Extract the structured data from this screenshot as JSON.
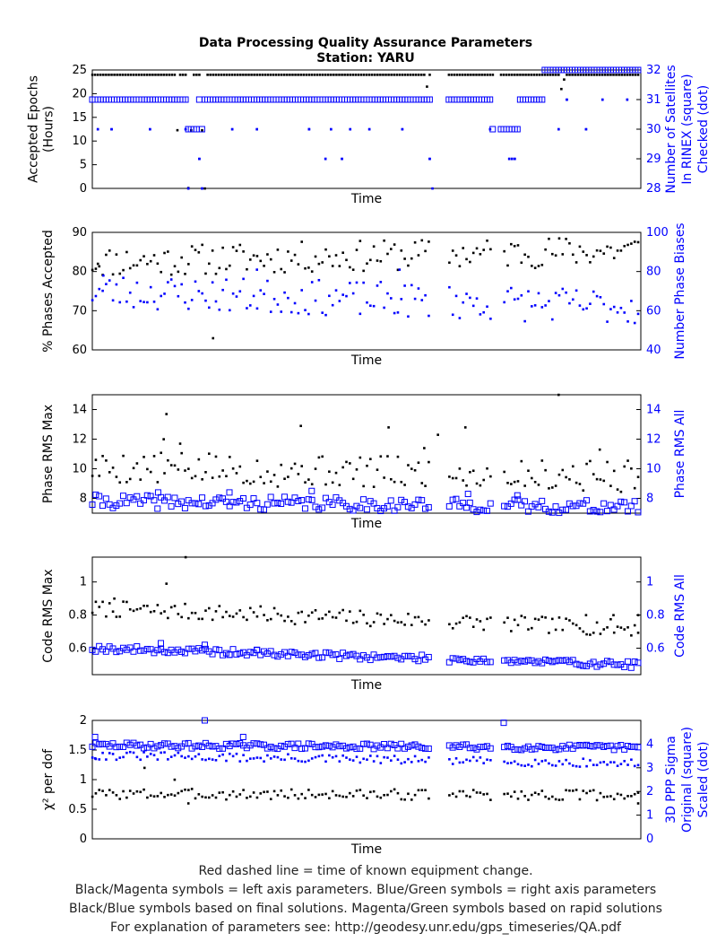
{
  "title": "Data Processing Quality Assurance Parameters",
  "subtitle": "Station: YARU",
  "footer": [
    "Red dashed line = time of known equipment change.",
    "Black/Magenta symbols = left axis parameters. Blue/Green symbols = right axis parameters",
    "Black/Blue symbols based on final solutions.  Magenta/Green symbols based on rapid solutions",
    "For explanation of parameters see: http://geodesy.unr.edu/gps_timeseries/QA.pdf"
  ],
  "colors": {
    "left": "#000000",
    "right": "#0000ff"
  },
  "chart_data": [
    {
      "type": "scatter",
      "xlabel": "Time",
      "ylabel_left": [
        "Accepted Epochs",
        "(Hours)"
      ],
      "ylabel_right": [
        "Number of Satellites",
        "In RINEX (square)",
        "Checked (dot)"
      ],
      "left_ylim": [
        0,
        25
      ],
      "left_ticks": [
        "0",
        "5",
        "10",
        "15",
        "20",
        "25"
      ],
      "right_ylim": [
        28,
        32
      ],
      "right_ticks": [
        "28",
        "29",
        "30",
        "31",
        "32"
      ],
      "grid": false,
      "x_range": [
        0,
        200
      ],
      "gaps": [
        [
          123,
          130
        ],
        [
          146,
          149
        ]
      ],
      "series": [
        {
          "axis": "left",
          "marker": "dot",
          "color": "#000000",
          "base": 24,
          "spread": 0.05,
          "values": [
            [
              31,
              12.3
            ],
            [
              35,
              0.1
            ],
            [
              36,
              12.3
            ],
            [
              40,
              12.3
            ],
            [
              41,
              0
            ],
            [
              100,
              24
            ],
            [
              122,
              21.5
            ],
            [
              124,
              0
            ],
            [
              126,
              23
            ],
            [
              147,
              12.3
            ],
            [
              161,
              24
            ],
            [
              167,
              24
            ],
            [
              171,
              21
            ],
            [
              172,
              23
            ],
            [
              175,
              24
            ]
          ],
          "mode": "base_plus_points"
        },
        {
          "axis": "right",
          "marker": "square",
          "color": "#0000ff",
          "base": 31,
          "spread": 0.0,
          "values": [
            [
              35,
              30
            ],
            [
              36,
              30
            ],
            [
              37,
              30
            ],
            [
              38,
              30
            ],
            [
              40,
              30
            ],
            [
              124,
              30
            ],
            [
              146,
              30
            ],
            [
              147,
              30
            ],
            [
              148,
              30
            ],
            [
              149,
              30
            ],
            [
              150,
              30
            ],
            [
              151,
              30
            ],
            [
              152,
              30
            ],
            [
              153,
              30
            ],
            [
              154,
              30
            ],
            [
              155,
              30
            ],
            [
              165,
              32
            ],
            [
              166,
              32
            ],
            [
              167,
              32
            ],
            [
              168,
              32
            ],
            [
              169,
              32
            ],
            [
              170,
              32
            ],
            [
              171,
              32
            ],
            [
              172,
              32
            ],
            [
              173,
              32
            ],
            [
              174,
              32
            ],
            [
              175,
              32
            ],
            [
              176,
              32
            ],
            [
              177,
              32
            ],
            [
              178,
              32
            ],
            [
              179,
              32
            ],
            [
              180,
              32
            ],
            [
              181,
              32
            ],
            [
              182,
              32
            ],
            [
              183,
              32
            ],
            [
              184,
              32
            ],
            [
              185,
              32
            ],
            [
              186,
              32
            ],
            [
              187,
              32
            ],
            [
              188,
              32
            ],
            [
              189,
              32
            ],
            [
              190,
              32
            ],
            [
              191,
              32
            ],
            [
              192,
              32
            ],
            [
              193,
              32
            ],
            [
              194,
              32
            ],
            [
              195,
              32
            ],
            [
              196,
              32
            ],
            [
              197,
              32
            ],
            [
              198,
              32
            ],
            [
              199,
              32
            ]
          ],
          "mode": "base_plus_points"
        },
        {
          "axis": "right",
          "marker": "dot",
          "color": "#0000ff",
          "base": 31,
          "spread": 0.0,
          "values": [
            [
              2,
              30
            ],
            [
              7,
              30
            ],
            [
              21,
              30
            ],
            [
              34,
              30
            ],
            [
              35,
              28
            ],
            [
              39,
              29
            ],
            [
              40,
              28
            ],
            [
              51,
              30
            ],
            [
              60,
              30
            ],
            [
              79,
              30
            ],
            [
              79,
              30
            ],
            [
              85,
              29
            ],
            [
              87,
              30
            ],
            [
              91,
              29
            ],
            [
              94,
              30
            ],
            [
              101,
              30
            ],
            [
              113,
              30
            ],
            [
              123,
              29
            ],
            [
              124,
              28
            ],
            [
              145,
              30
            ],
            [
              152,
              29
            ],
            [
              153,
              29
            ],
            [
              154,
              29
            ],
            [
              170,
              30
            ],
            [
              173,
              31
            ],
            [
              180,
              30
            ],
            [
              186,
              31
            ],
            [
              195,
              31
            ]
          ],
          "mode": "base_plus_points"
        }
      ]
    },
    {
      "type": "scatter",
      "xlabel": "Time",
      "ylabel_left": [
        "% Phases Accepted"
      ],
      "ylabel_right": [
        "Number Phase Biases"
      ],
      "left_ylim": [
        60,
        90
      ],
      "left_ticks": [
        "60",
        "70",
        "80",
        "90"
      ],
      "right_ylim": [
        40,
        100
      ],
      "right_ticks": [
        "40",
        "60",
        "80",
        "100"
      ],
      "grid": false,
      "x_range": [
        0,
        200
      ],
      "gaps": [
        [
          123,
          130
        ],
        [
          146,
          149
        ]
      ],
      "series": [
        {
          "axis": "left",
          "marker": "dot",
          "color": "#000000",
          "mode": "generated",
          "seed": 11,
          "mean": 84,
          "amp": 4,
          "trend": 3,
          "n": 160,
          "extra": [
            [
              44,
              63
            ],
            [
              2,
              82
            ]
          ]
        },
        {
          "axis": "right",
          "marker": "dot",
          "color": "#0000ff",
          "mode": "generated",
          "seed": 23,
          "mean": 66,
          "amp": 9,
          "trend": -8,
          "n": 160,
          "extra": [
            [
              4,
              78
            ],
            [
              60,
              81
            ],
            [
              112,
              81
            ]
          ]
        }
      ]
    },
    {
      "type": "scatter",
      "xlabel": "Time",
      "ylabel_left": [
        "Phase RMS Max"
      ],
      "ylabel_right": [
        "Phase RMS All"
      ],
      "left_ylim": [
        7,
        15
      ],
      "left_ticks": [
        "8",
        "10",
        "12",
        "14"
      ],
      "right_ylim": [
        7,
        15
      ],
      "right_ticks": [
        "8",
        "10",
        "12",
        "14"
      ],
      "grid": false,
      "x_range": [
        0,
        200
      ],
      "gaps": [
        [
          123,
          130
        ],
        [
          146,
          149
        ]
      ],
      "series": [
        {
          "axis": "left",
          "marker": "dot",
          "color": "#000000",
          "mode": "generated",
          "seed": 5,
          "mean": 9.8,
          "amp": 1.1,
          "trend": -0.6,
          "n": 160,
          "extra": [
            [
              27,
              13.7
            ],
            [
              76,
              12.9
            ],
            [
              108,
              12.8
            ],
            [
              136,
              12.8
            ],
            [
              170,
              15.0
            ],
            [
              126,
              12.3
            ],
            [
              26,
              12.0
            ],
            [
              32,
              11.7
            ],
            [
              121,
              11.4
            ],
            [
              185,
              11.3
            ]
          ]
        },
        {
          "axis": "right",
          "marker": "square",
          "color": "#0000ff",
          "mode": "generated",
          "seed": 41,
          "mean": 7.6,
          "amp": 0.45,
          "trend": -0.4,
          "n": 160,
          "extra": [
            [
              24,
              8.4
            ],
            [
              50,
              8.4
            ],
            [
              80,
              8.5
            ],
            [
              137,
              8.3
            ],
            [
              155,
              8.2
            ]
          ]
        }
      ]
    },
    {
      "type": "scatter",
      "xlabel": "Time",
      "ylabel_left": [
        "Code RMS Max"
      ],
      "ylabel_right": [
        "Code RMS All"
      ],
      "left_ylim": [
        0.44,
        1.15
      ],
      "left_ticks": [
        "0.6",
        "0.8",
        "1"
      ],
      "right_ylim": [
        0.44,
        1.15
      ],
      "right_ticks": [
        "0.6",
        "0.8",
        "1"
      ],
      "grid": false,
      "x_range": [
        0,
        200
      ],
      "gaps": [
        [
          123,
          130
        ],
        [
          146,
          149
        ]
      ],
      "series": [
        {
          "axis": "left",
          "marker": "dot",
          "color": "#000000",
          "mode": "generated",
          "seed": 7,
          "mean": 0.78,
          "amp": 0.05,
          "trend": -0.12,
          "n": 160,
          "extra": [
            [
              34,
              1.15
            ],
            [
              27,
              0.99
            ],
            [
              8,
              0.9
            ],
            [
              180,
              0.8
            ],
            [
              190,
              0.8
            ],
            [
              199,
              0.8
            ]
          ]
        },
        {
          "axis": "right",
          "marker": "square",
          "color": "#0000ff",
          "mode": "generated",
          "seed": 19,
          "mean": 0.55,
          "amp": 0.02,
          "trend": -0.1,
          "n": 160,
          "extra": [
            [
              25,
              0.63
            ],
            [
              41,
              0.62
            ],
            [
              60,
              0.59
            ],
            [
              50,
              0.56
            ]
          ]
        }
      ]
    },
    {
      "type": "scatter",
      "xlabel": "Time",
      "ylabel_left": [
        "χ² per dof"
      ],
      "ylabel_right": [
        "3D PPP Sigma",
        "Original (square)",
        "Scaled (dot)"
      ],
      "left_ylim": [
        0,
        2
      ],
      "left_ticks": [
        "0",
        "0.5",
        "1",
        "1.5",
        "2"
      ],
      "right_ylim": [
        0,
        5
      ],
      "right_ticks": [
        "0",
        "1",
        "2",
        "3",
        "4"
      ],
      "grid": false,
      "x_range": [
        0,
        200
      ],
      "gaps": [
        [
          123,
          130
        ],
        [
          146,
          149
        ]
      ],
      "series": [
        {
          "axis": "left",
          "marker": "dot",
          "color": "#000000",
          "mode": "generated",
          "seed": 3,
          "mean": 0.75,
          "amp": 0.09,
          "trend": -0.02,
          "n": 160,
          "extra": [
            [
              30,
              1.0
            ],
            [
              19,
              1.2
            ],
            [
              35,
              0.6
            ],
            [
              199,
              0.6
            ]
          ]
        },
        {
          "axis": "right",
          "marker": "square",
          "color": "#0000ff",
          "mode": "generated",
          "seed": 29,
          "mean": 3.9,
          "amp": 0.12,
          "trend": -0.1,
          "n": 160,
          "extra": [
            [
              41,
              5.0
            ],
            [
              150,
              4.9
            ],
            [
              55,
              4.3
            ],
            [
              1,
              4.3
            ]
          ]
        },
        {
          "axis": "right",
          "marker": "dot",
          "color": "#0000ff",
          "mode": "generated",
          "seed": 31,
          "mean": 3.35,
          "amp": 0.18,
          "trend": -0.35,
          "n": 160,
          "extra": [
            [
              1,
              3.4
            ],
            [
              50,
              4.1
            ]
          ]
        }
      ]
    }
  ]
}
